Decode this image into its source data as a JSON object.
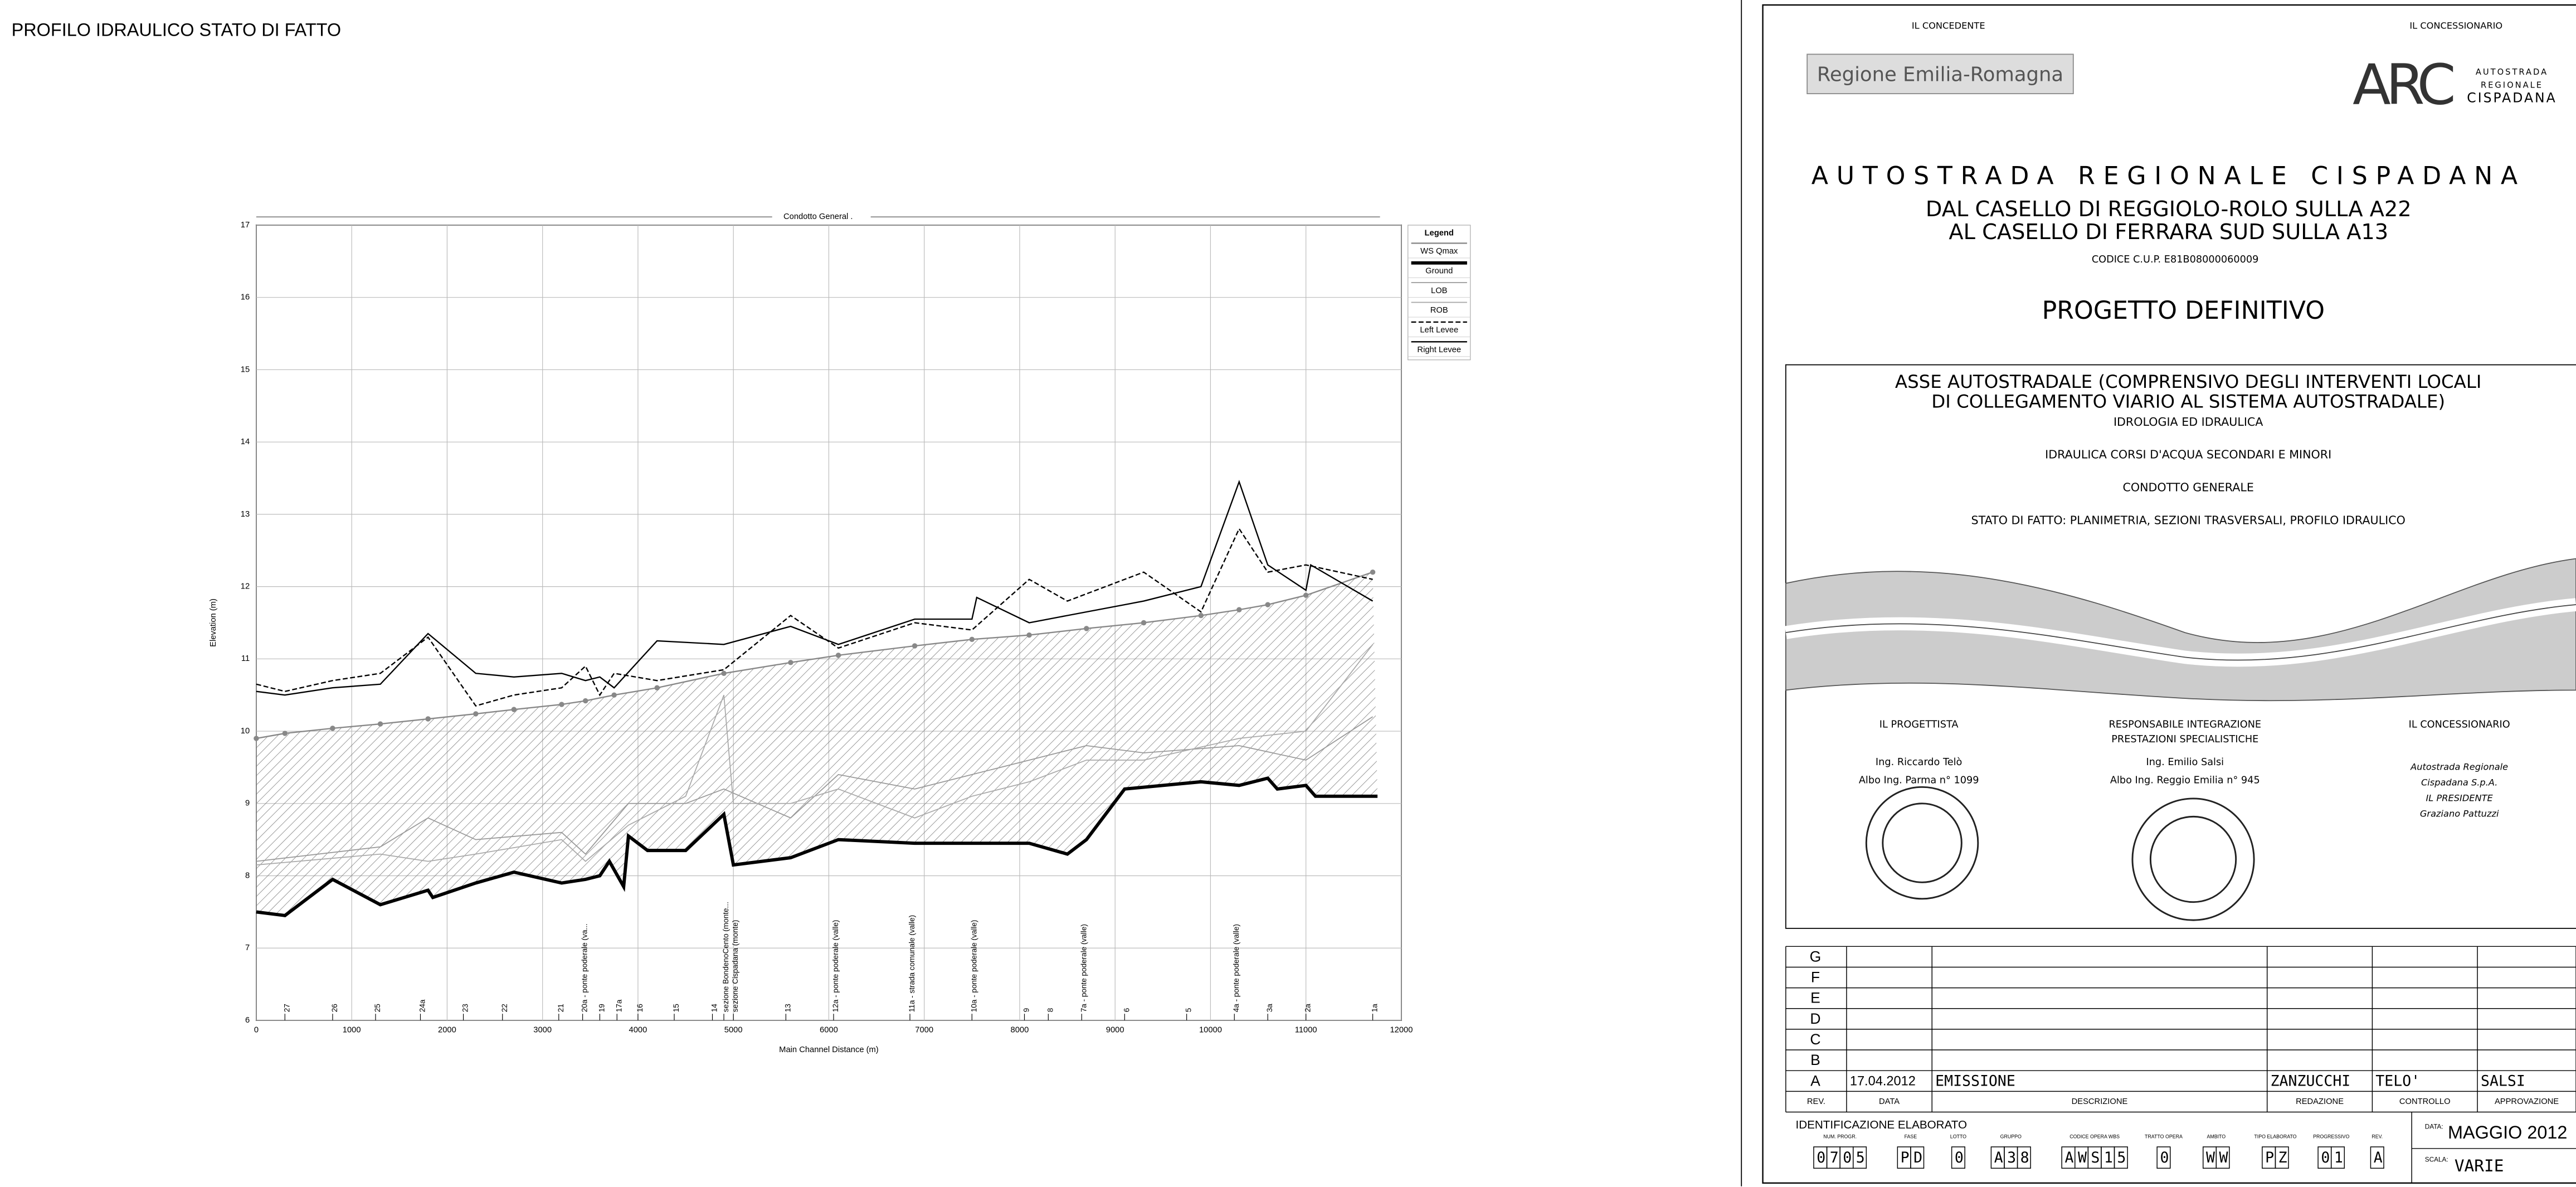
{
  "page_title": "PROFILO IDRAULICO STATO DI FATTO",
  "chart_data": {
    "type": "line",
    "title": "Condotto General .",
    "x_label": "Main Channel Distance (m)",
    "y_label": "Elevation (m)",
    "xlim": [
      0,
      12000
    ],
    "xticks": [
      0,
      1000,
      2000,
      3000,
      4000,
      5000,
      6000,
      7000,
      8000,
      9000,
      10000,
      11000,
      12000
    ],
    "ylim": [
      6,
      17
    ],
    "yticks": [
      6,
      7,
      8,
      9,
      10,
      11,
      12,
      13,
      14,
      15,
      16,
      17
    ],
    "grid": true,
    "legend_title": "Legend",
    "legend": "right",
    "fill_between": [
      "WS Qmax",
      "Ground"
    ],
    "series": [
      {
        "name": "WS Qmax",
        "color": "#888888",
        "style": "solid",
        "marker": "circle",
        "x": [
          0,
          300,
          800,
          1300,
          1800,
          2300,
          2700,
          3200,
          3450,
          3750,
          4200,
          4900,
          5600,
          6100,
          6900,
          7500,
          8100,
          8700,
          9300,
          9900,
          10300,
          10600,
          11000,
          11700
        ],
        "values": [
          9.9,
          9.97,
          10.04,
          10.1,
          10.17,
          10.24,
          10.3,
          10.37,
          10.42,
          10.5,
          10.6,
          10.8,
          10.95,
          11.05,
          11.18,
          11.27,
          11.33,
          11.42,
          11.5,
          11.6,
          11.68,
          11.75,
          11.88,
          12.2
        ]
      },
      {
        "name": "Ground",
        "color": "#000000",
        "style": "thick",
        "x": [
          0,
          300,
          800,
          1300,
          1800,
          1850,
          2300,
          2700,
          3200,
          3450,
          3600,
          3700,
          3850,
          3900,
          4100,
          4500,
          4900,
          5000,
          5600,
          6100,
          6900,
          7500,
          8100,
          8500,
          8700,
          9100,
          9900,
          10300,
          10600,
          10700,
          11000,
          11100,
          11750
        ],
        "values": [
          7.5,
          7.45,
          7.95,
          7.6,
          7.8,
          7.7,
          7.9,
          8.05,
          7.9,
          7.95,
          8.0,
          8.2,
          7.85,
          8.55,
          8.35,
          8.35,
          8.85,
          8.15,
          8.25,
          8.5,
          8.45,
          8.45,
          8.45,
          8.3,
          8.5,
          9.2,
          9.3,
          9.25,
          9.35,
          9.2,
          9.25,
          9.1,
          9.1
        ]
      },
      {
        "name": "LOB",
        "color": "#999999",
        "style": "thin",
        "x": [
          0,
          1300,
          1800,
          2300,
          3200,
          3450,
          3900,
          4500,
          4900,
          5600,
          6100,
          6900,
          7500,
          8100,
          8700,
          9300,
          10300,
          11000,
          11700
        ],
        "values": [
          8.2,
          8.4,
          8.8,
          8.5,
          8.6,
          8.3,
          9.0,
          9.0,
          9.2,
          8.8,
          9.4,
          9.2,
          9.4,
          9.6,
          9.8,
          9.7,
          9.8,
          9.6,
          10.2
        ]
      },
      {
        "name": "ROB",
        "color": "#aaaaaa",
        "style": "thin",
        "x": [
          0,
          1300,
          1800,
          2300,
          3200,
          3450,
          3900,
          4500,
          4900,
          5000,
          5600,
          6100,
          6900,
          7500,
          8100,
          8700,
          9300,
          10300,
          11000,
          11700
        ],
        "values": [
          8.15,
          8.3,
          8.2,
          8.3,
          8.5,
          8.2,
          8.7,
          9.1,
          10.5,
          9.0,
          9.0,
          9.2,
          8.8,
          9.1,
          9.3,
          9.6,
          9.6,
          9.9,
          10.0,
          11.2
        ]
      },
      {
        "name": "Left Levee",
        "color": "#000000",
        "style": "dashed",
        "x": [
          0,
          300,
          800,
          1300,
          1800,
          2300,
          2700,
          3200,
          3450,
          3600,
          3750,
          4200,
          4900,
          5600,
          6100,
          6900,
          7500,
          8100,
          8500,
          9300,
          9900,
          10300,
          10600,
          11000,
          11700
        ],
        "values": [
          10.65,
          10.55,
          10.7,
          10.8,
          11.3,
          10.35,
          10.5,
          10.6,
          10.9,
          10.5,
          10.8,
          10.7,
          10.85,
          11.6,
          11.15,
          11.5,
          11.4,
          12.1,
          11.8,
          12.2,
          11.65,
          12.8,
          12.2,
          12.3,
          12.1
        ]
      },
      {
        "name": "Right Levee",
        "color": "#000000",
        "style": "solid",
        "x": [
          0,
          300,
          800,
          1300,
          1800,
          2300,
          2700,
          3200,
          3450,
          3600,
          3750,
          4200,
          4900,
          5600,
          6100,
          6900,
          7500,
          7550,
          8100,
          8500,
          9300,
          9900,
          10300,
          10600,
          11000,
          11050,
          11700
        ],
        "values": [
          10.55,
          10.5,
          10.6,
          10.65,
          11.35,
          10.8,
          10.75,
          10.8,
          10.7,
          10.75,
          10.6,
          11.25,
          11.2,
          11.45,
          11.2,
          11.55,
          11.55,
          11.85,
          11.5,
          11.6,
          11.8,
          12.0,
          13.45,
          12.3,
          11.95,
          12.3,
          11.8
        ]
      }
    ],
    "sections": [
      {
        "x": 300,
        "label": "27"
      },
      {
        "x": 800,
        "label": "26"
      },
      {
        "x": 1250,
        "label": "25"
      },
      {
        "x": 1720,
        "label": "24a"
      },
      {
        "x": 2170,
        "label": "23"
      },
      {
        "x": 2580,
        "label": "22"
      },
      {
        "x": 3170,
        "label": "21"
      },
      {
        "x": 3420,
        "label": "20a - ponte poderale (va..."
      },
      {
        "x": 3600,
        "label": "19"
      },
      {
        "x": 3780,
        "label": "17a"
      },
      {
        "x": 4000,
        "label": "16"
      },
      {
        "x": 4380,
        "label": "15"
      },
      {
        "x": 4780,
        "label": "14"
      },
      {
        "x": 4900,
        "label": "sezione BondenoCento (monte..."
      },
      {
        "x": 5000,
        "label": "sezione Cispadana (monte)"
      },
      {
        "x": 5550,
        "label": "13"
      },
      {
        "x": 6050,
        "label": "12a - ponte poderale (valle)"
      },
      {
        "x": 6850,
        "label": "11a - strada comunale (valle)"
      },
      {
        "x": 7500,
        "label": "10a - ponte poderale (valle)"
      },
      {
        "x": 8050,
        "label": "9"
      },
      {
        "x": 8300,
        "label": "8"
      },
      {
        "x": 8650,
        "label": "7a - ponte poderale (valle)"
      },
      {
        "x": 9100,
        "label": "6"
      },
      {
        "x": 9750,
        "label": "5"
      },
      {
        "x": 10250,
        "label": "4a - ponte poderale (valle)"
      },
      {
        "x": 10600,
        "label": "3a"
      },
      {
        "x": 11000,
        "label": "2a"
      },
      {
        "x": 11700,
        "label": "1a"
      }
    ]
  },
  "title_block": {
    "concedente": "IL CONCEDENTE",
    "concessionario": "IL CONCESSIONARIO",
    "logo_left": "Regione Emilia-Romagna",
    "logo_right": "ARC",
    "logo_right_text": [
      "AUTOSTRADA",
      "REGIONALE",
      "CISPADANA"
    ],
    "headline": "AUTOSTRADA REGIONALE CISPADANA",
    "route": [
      "DAL CASELLO DI REGGIOLO-ROLO SULLA A22",
      "AL CASELLO DI FERRARA SUD SULLA A13"
    ],
    "cup": "CODICE C.U.P.  E81B08000060009",
    "phase": "PROGETTO DEFINITIVO",
    "subject": [
      "ASSE AUTOSTRADALE (COMPRENSIVO DEGLI INTERVENTI LOCALI",
      "DI COLLEGAMENTO VIARIO AL SISTEMA AUTOSTRADALE)"
    ],
    "discipline": "IDROLOGIA ED IDRAULICA",
    "subsection": "IDRAULICA CORSI D'ACQUA SECONDARI E MINORI",
    "item": "CONDOTTO GENERALE",
    "content": "STATO DI FATTO: PLANIMETRIA, SEZIONI TRASVERSALI, PROFILO IDRAULICO",
    "signers": [
      {
        "role": [
          "IL PROGETTISTA"
        ],
        "lines": [
          "Ing. Riccardo Telò",
          "Albo Ing. Parma n° 1099"
        ]
      },
      {
        "role": [
          "RESPONSABILE INTEGRAZIONE",
          "PRESTAZIONI SPECIALISTICHE"
        ],
        "lines": [
          "Ing. Emilio Salsi",
          "Albo Ing. Reggio Emilia n° 945"
        ]
      },
      {
        "role": [
          "IL CONCESSIONARIO"
        ],
        "lines": [
          "Autostrada Regionale",
          "Cispadana S.p.A.",
          "IL PRESIDENTE",
          "Graziano Pattuzzi"
        ]
      }
    ],
    "revisions": [
      [
        "G",
        "",
        "",
        "",
        "",
        ""
      ],
      [
        "F",
        "",
        "",
        "",
        "",
        ""
      ],
      [
        "E",
        "",
        "",
        "",
        "",
        ""
      ],
      [
        "D",
        "",
        "",
        "",
        "",
        ""
      ],
      [
        "C",
        "",
        "",
        "",
        "",
        ""
      ],
      [
        "B",
        "",
        "",
        "",
        "",
        ""
      ],
      [
        "A",
        "17.04.2012",
        "EMISSIONE",
        "ZANZUCCHI",
        "TELO'",
        "SALSI"
      ]
    ],
    "revision_header": [
      "REV.",
      "DATA",
      "DESCRIZIONE",
      "REDAZIONE",
      "CONTROLLO",
      "APPROVAZIONE"
    ],
    "id_title": "IDENTIFICAZIONE ELABORATO",
    "id_fields": [
      {
        "label": "NUM. PROGR.",
        "value": "0705"
      },
      {
        "label": "FASE",
        "value": "PD"
      },
      {
        "label": "LOTTO",
        "value": "0"
      },
      {
        "label": "GRUPPO",
        "value": "A38"
      },
      {
        "label": "CODICE OPERA WBS",
        "value": "AWS15"
      },
      {
        "label": "TRATTO OPERA",
        "value": "0"
      },
      {
        "label": "AMBITO",
        "value": "WW"
      },
      {
        "label": "TIPO ELABORATO",
        "value": "PZ"
      },
      {
        "label": "PROGRESSIVO",
        "value": "01"
      },
      {
        "label": "REV.",
        "value": "A"
      }
    ],
    "date_label": "DATA:",
    "date": "MAGGIO 2012",
    "scale_label": "SCALA:",
    "scale": "VARIE"
  }
}
